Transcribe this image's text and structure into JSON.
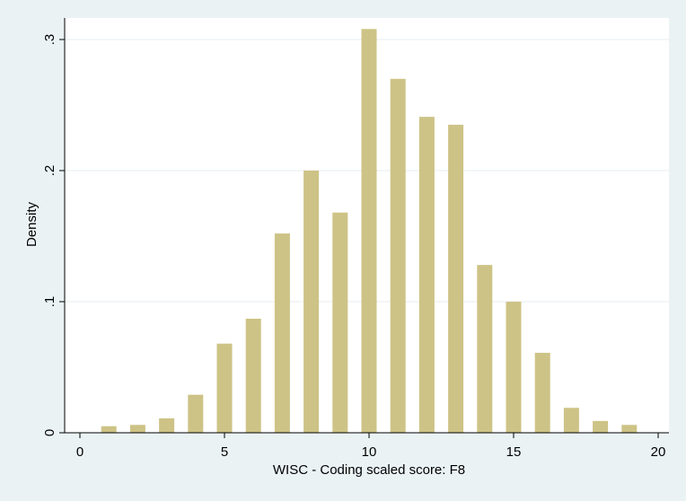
{
  "chart_data": {
    "type": "bar",
    "xlabel": "WISC - Coding scaled score: F8",
    "ylabel": "Density",
    "xlim": [
      0,
      20
    ],
    "ylim": [
      0,
      0.32
    ],
    "x_ticks": [
      {
        "value": 0,
        "label": "0"
      },
      {
        "value": 5,
        "label": "5"
      },
      {
        "value": 10,
        "label": "10"
      },
      {
        "value": 15,
        "label": "15"
      },
      {
        "value": 20,
        "label": "20"
      }
    ],
    "y_ticks": [
      {
        "value": 0,
        "label": "0"
      },
      {
        "value": 0.1,
        "label": ".1"
      },
      {
        "value": 0.2,
        "label": ".2"
      },
      {
        "value": 0.3,
        "label": ".3"
      }
    ],
    "grid": "horizontal",
    "x": [
      1,
      2,
      3,
      4,
      5,
      6,
      7,
      8,
      9,
      10,
      11,
      12,
      13,
      14,
      15,
      16,
      17,
      18,
      19
    ],
    "values": [
      0.005,
      0.006,
      0.011,
      0.029,
      0.068,
      0.087,
      0.152,
      0.2,
      0.168,
      0.308,
      0.27,
      0.241,
      0.235,
      0.128,
      0.1,
      0.061,
      0.019,
      0.009,
      0.006
    ],
    "colors": {
      "bar": "#cdc386",
      "plot_background": "#ffffff",
      "outer_background": "#eaf2f3",
      "grid": "#e7eef0",
      "axis": "#000000"
    }
  }
}
